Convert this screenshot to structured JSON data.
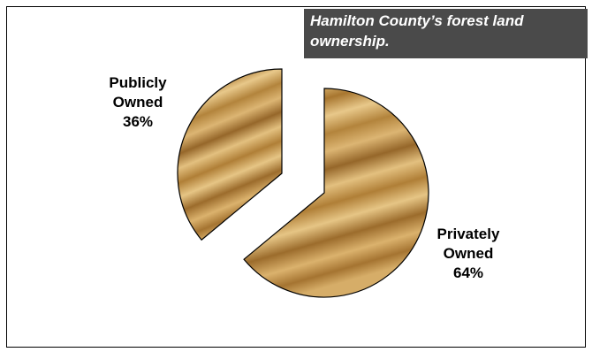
{
  "chart_data": {
    "type": "pie",
    "title": "Hamilton County’s forest land ownership.",
    "slices": [
      {
        "name_lines": [
          "Privately",
          "Owned"
        ],
        "value": 64,
        "value_label": "64%"
      },
      {
        "name_lines": [
          "Publicly",
          "Owned"
        ],
        "value": 36,
        "value_label": "36%"
      }
    ],
    "legend": "none",
    "exploded": true,
    "colors": {
      "fill_base": "#c99b4c",
      "fill_light": "#e8c88a",
      "fill_dark": "#8f6326",
      "outline": "#000000",
      "title_bg": "#4a4a4a"
    }
  }
}
